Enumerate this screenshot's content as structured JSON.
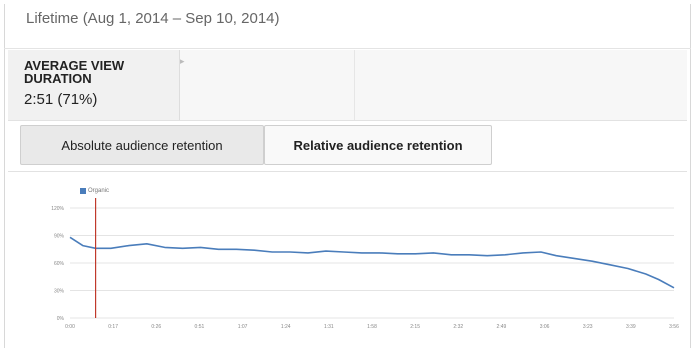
{
  "header": {
    "date_range": "Lifetime (Aug 1, 2014 – Sep 10, 2014)"
  },
  "metric": {
    "title": "AVERAGE VIEW DURATION",
    "value": "2:51 (71%)"
  },
  "tabs": [
    {
      "label": "Absolute audience retention",
      "selected": true
    },
    {
      "label": "Relative audience retention",
      "selected": false
    }
  ],
  "chart_data": {
    "type": "line",
    "legend": "Organic",
    "y_ticks": [
      "120%",
      "90%",
      "60%",
      "30%",
      "0%"
    ],
    "ylim": [
      0,
      120
    ],
    "x_ticks": [
      "0:00",
      "0:17",
      "0:26",
      "0:51",
      "1:07",
      "1:24",
      "1:31",
      "1:58",
      "2:15",
      "2:32",
      "2:49",
      "3:06",
      "3:23",
      "3:39",
      "3:56"
    ],
    "xlim": [
      0,
      236
    ],
    "marker_x": 10,
    "series": [
      {
        "x": [
          0,
          5,
          10,
          16,
          23,
          30,
          37,
          44,
          51,
          58,
          65,
          72,
          79,
          86,
          93,
          100,
          107,
          114,
          121,
          128,
          135,
          142,
          149,
          156,
          163,
          170,
          177,
          184,
          190,
          197,
          204,
          211,
          218,
          225,
          230,
          236
        ],
        "values": [
          88,
          79,
          76,
          76,
          79,
          81,
          77,
          76,
          77,
          75,
          75,
          74,
          72,
          72,
          71,
          73,
          72,
          71,
          71,
          70,
          70,
          71,
          69,
          69,
          68,
          69,
          71,
          72,
          68,
          65,
          62,
          58,
          54,
          48,
          42,
          33
        ]
      }
    ],
    "colors": {
      "line": "#4a7dbb",
      "marker": "#c0392b",
      "grid": "#e4e4e4"
    }
  }
}
